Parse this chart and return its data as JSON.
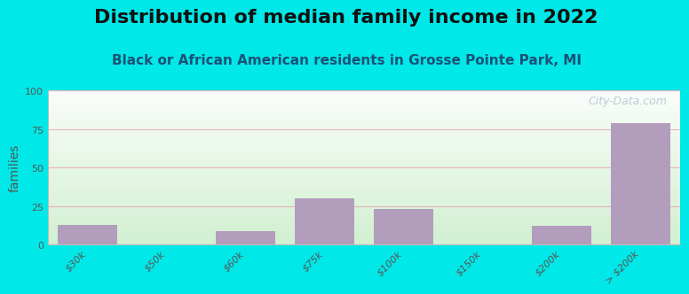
{
  "title": "Distribution of median family income in 2022",
  "subtitle": "Black or African American residents in Grosse Pointe Park, MI",
  "ylabel": "families",
  "categories": [
    "$30k",
    "$50k",
    "$60k",
    "$75k",
    "$100k",
    "$150k",
    "$200k",
    "> $200k"
  ],
  "values": [
    13,
    0,
    9,
    30,
    23,
    0,
    12,
    79
  ],
  "bar_color": "#b39dbd",
  "ylim": [
    0,
    100
  ],
  "yticks": [
    0,
    25,
    50,
    75,
    100
  ],
  "background_outer": "#00e8e8",
  "title_fontsize": 16,
  "subtitle_fontsize": 11,
  "ylabel_fontsize": 10,
  "tick_fontsize": 8,
  "watermark": "City-Data.com",
  "grid_color": "#e8a0b0",
  "title_color": "#111111",
  "subtitle_color": "#1a5276",
  "axis_line_color": "#bbbbbb"
}
